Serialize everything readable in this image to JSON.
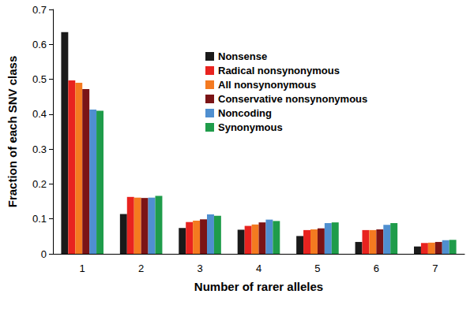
{
  "chart_data": {
    "type": "bar",
    "x_label": "Number of rarer alleles",
    "y_label": "Fraction of each SNV class",
    "categories": [
      "1",
      "2",
      "3",
      "4",
      "5",
      "6",
      "7"
    ],
    "series": [
      {
        "name": "Nonsense",
        "color": "#1a1a1a",
        "values": [
          0.635,
          0.114,
          0.074,
          0.069,
          0.051,
          0.034,
          0.021
        ]
      },
      {
        "name": "Radical nonsynonymous",
        "color": "#e8231f",
        "values": [
          0.497,
          0.163,
          0.091,
          0.08,
          0.068,
          0.068,
          0.031
        ]
      },
      {
        "name": "All nonsynonymous",
        "color": "#f47a20",
        "values": [
          0.49,
          0.161,
          0.095,
          0.084,
          0.07,
          0.068,
          0.032
        ]
      },
      {
        "name": "Conservative nonsynonymous",
        "color": "#7b1416",
        "values": [
          0.472,
          0.16,
          0.099,
          0.09,
          0.073,
          0.07,
          0.034
        ]
      },
      {
        "name": "Noncoding",
        "color": "#4f8fd0",
        "values": [
          0.413,
          0.161,
          0.113,
          0.098,
          0.088,
          0.083,
          0.039
        ]
      },
      {
        "name": "Synonymous",
        "color": "#1f9c4a",
        "values": [
          0.41,
          0.166,
          0.109,
          0.094,
          0.09,
          0.088,
          0.04
        ]
      }
    ],
    "ylim": [
      0,
      0.7
    ],
    "yticks": [
      0,
      0.1,
      0.2,
      0.3,
      0.4,
      0.5,
      0.6,
      0.7
    ],
    "grid": false,
    "legend": "top"
  }
}
